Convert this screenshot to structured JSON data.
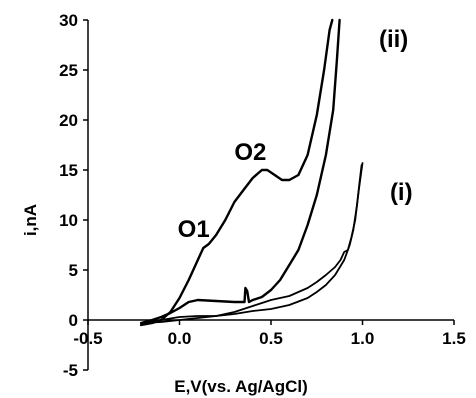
{
  "chart_data": {
    "type": "line",
    "title": "",
    "xlabel": "E,V(vs. Ag/AgCl)",
    "ylabel": "i,nA",
    "xlim": [
      -0.5,
      1.5
    ],
    "ylim": [
      -5,
      30
    ],
    "x_ticks": [
      "-0.5",
      "0.0",
      "0.5",
      "1.0",
      "1.5"
    ],
    "y_ticks": [
      "-5",
      "0",
      "5",
      "10",
      "15",
      "20",
      "25",
      "30"
    ],
    "grid": false,
    "legend": "none",
    "annotations": [
      {
        "text": "(ii)",
        "x": 1.09,
        "y": 27.3
      },
      {
        "text": "O2",
        "x": 0.3,
        "y": 16.0
      },
      {
        "text": "(i)",
        "x": 1.15,
        "y": 12.0
      },
      {
        "text": "O1",
        "x": -0.01,
        "y": 8.3
      }
    ],
    "series": [
      {
        "label": "(ii)",
        "points": [
          [
            -0.21,
            -0.5
          ],
          [
            -0.15,
            -0.3
          ],
          [
            -0.1,
            0.0
          ],
          [
            -0.05,
            0.8
          ],
          [
            0.0,
            2.2
          ],
          [
            0.05,
            4.0
          ],
          [
            0.1,
            6.0
          ],
          [
            0.13,
            7.2
          ],
          [
            0.16,
            7.6
          ],
          [
            0.2,
            8.5
          ],
          [
            0.25,
            10.0
          ],
          [
            0.3,
            11.8
          ],
          [
            0.35,
            13.0
          ],
          [
            0.4,
            14.2
          ],
          [
            0.45,
            15.0
          ],
          [
            0.48,
            15.0
          ],
          [
            0.52,
            14.5
          ],
          [
            0.56,
            14.0
          ],
          [
            0.6,
            14.0
          ],
          [
            0.65,
            14.5
          ],
          [
            0.7,
            16.5
          ],
          [
            0.75,
            20.5
          ],
          [
            0.79,
            25.0
          ],
          [
            0.82,
            29.0
          ],
          [
            0.835,
            30.0
          ]
        ]
      },
      {
        "label": "(ii) return",
        "points": [
          [
            0.875,
            30.0
          ],
          [
            0.86,
            26.0
          ],
          [
            0.84,
            21.0
          ],
          [
            0.8,
            16.5
          ],
          [
            0.75,
            12.5
          ],
          [
            0.7,
            9.5
          ],
          [
            0.65,
            7.0
          ],
          [
            0.6,
            5.5
          ],
          [
            0.55,
            4.0
          ],
          [
            0.5,
            3.0
          ],
          [
            0.45,
            2.3
          ],
          [
            0.4,
            2.0
          ],
          [
            0.38,
            1.8
          ],
          [
            0.37,
            2.9
          ],
          [
            0.36,
            3.2
          ],
          [
            0.355,
            1.8
          ],
          [
            0.3,
            1.8
          ],
          [
            0.2,
            1.9
          ],
          [
            0.1,
            2.0
          ],
          [
            0.05,
            1.8
          ],
          [
            0.0,
            1.2
          ],
          [
            -0.05,
            0.7
          ],
          [
            -0.1,
            0.3
          ],
          [
            -0.15,
            0.0
          ],
          [
            -0.21,
            -0.3
          ]
        ]
      },
      {
        "label": "(i)",
        "points": [
          [
            -0.2,
            -0.3
          ],
          [
            -0.1,
            0.0
          ],
          [
            0.0,
            0.3
          ],
          [
            0.1,
            0.4
          ],
          [
            0.2,
            0.4
          ],
          [
            0.3,
            0.6
          ],
          [
            0.4,
            0.9
          ],
          [
            0.5,
            1.1
          ],
          [
            0.6,
            1.5
          ],
          [
            0.7,
            2.2
          ],
          [
            0.75,
            2.8
          ],
          [
            0.8,
            3.5
          ],
          [
            0.85,
            4.5
          ],
          [
            0.9,
            6.0
          ],
          [
            0.93,
            7.5
          ],
          [
            0.95,
            9.0
          ],
          [
            0.97,
            11.5
          ],
          [
            0.985,
            14.0
          ],
          [
            0.995,
            15.5
          ]
        ]
      },
      {
        "label": "(i) return",
        "points": [
          [
            1.0,
            15.7
          ],
          [
            0.98,
            13.0
          ],
          [
            0.96,
            10.0
          ],
          [
            0.94,
            8.3
          ],
          [
            0.92,
            7.0
          ],
          [
            0.9,
            6.8
          ],
          [
            0.88,
            6.0
          ],
          [
            0.85,
            5.3
          ],
          [
            0.8,
            4.5
          ],
          [
            0.75,
            3.8
          ],
          [
            0.7,
            3.2
          ],
          [
            0.65,
            2.8
          ],
          [
            0.6,
            2.4
          ],
          [
            0.55,
            2.2
          ],
          [
            0.5,
            2.0
          ],
          [
            0.45,
            1.7
          ],
          [
            0.4,
            1.4
          ],
          [
            0.3,
            0.8
          ],
          [
            0.2,
            0.4
          ],
          [
            0.1,
            0.2
          ],
          [
            0.0,
            0.0
          ],
          [
            -0.1,
            -0.2
          ],
          [
            -0.2,
            -0.3
          ]
        ]
      }
    ]
  }
}
